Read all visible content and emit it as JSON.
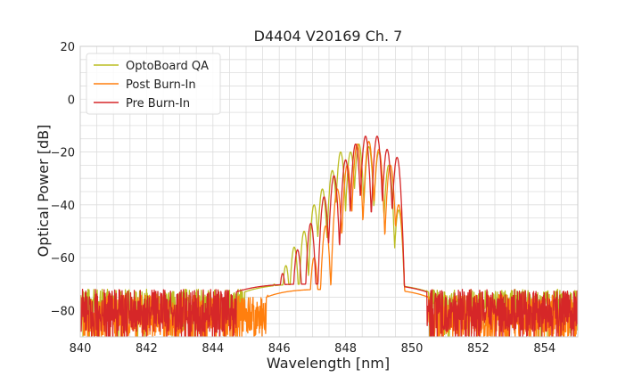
{
  "chart_data": {
    "type": "line",
    "title": "D4404 V20169 Ch. 7",
    "xlabel": "Wavelength [nm]",
    "ylabel": "Optical Power [dB]",
    "xlim": [
      840,
      855
    ],
    "ylim": [
      -90,
      20
    ],
    "x_ticks": [
      "840",
      "842",
      "844",
      "846",
      "848",
      "850",
      "852",
      "854"
    ],
    "y_ticks": [
      "20",
      "0",
      "−20",
      "−40",
      "−60",
      "−80"
    ],
    "x_minor_step": 0.5,
    "y_minor_step": 5,
    "grid": true,
    "legend_position": "top-left",
    "series": [
      {
        "name": "OptoBoard QA",
        "color": "#bcbd22",
        "noise_floor": [
          -84,
          -72
        ],
        "peaks": [
          {
            "x": 845.85,
            "y": -70
          },
          {
            "x": 846.2,
            "y": -63
          },
          {
            "x": 846.45,
            "y": -56
          },
          {
            "x": 846.75,
            "y": -50
          },
          {
            "x": 847.05,
            "y": -40
          },
          {
            "x": 847.3,
            "y": -34
          },
          {
            "x": 847.6,
            "y": -27
          },
          {
            "x": 847.85,
            "y": -20
          },
          {
            "x": 848.15,
            "y": -20
          },
          {
            "x": 848.4,
            "y": -17
          },
          {
            "x": 848.7,
            "y": -18
          },
          {
            "x": 849.0,
            "y": -20
          },
          {
            "x": 849.3,
            "y": -25
          },
          {
            "x": 849.6,
            "y": -42
          }
        ]
      },
      {
        "name": "Post Burn-In",
        "color": "#ff7f0e",
        "noise_floor": [
          -90,
          -74
        ],
        "peaks": [
          {
            "x": 846.5,
            "y": -78
          },
          {
            "x": 847.05,
            "y": -60
          },
          {
            "x": 847.4,
            "y": -48
          },
          {
            "x": 847.75,
            "y": -34
          },
          {
            "x": 848.05,
            "y": -25
          },
          {
            "x": 848.35,
            "y": -17
          },
          {
            "x": 848.7,
            "y": -16
          },
          {
            "x": 849.0,
            "y": -19
          },
          {
            "x": 849.35,
            "y": -25
          },
          {
            "x": 849.6,
            "y": -40
          }
        ]
      },
      {
        "name": "Pre Burn-In",
        "color": "#d62728",
        "noise_floor": [
          -88,
          -72
        ],
        "peaks": [
          {
            "x": 845.6,
            "y": -72
          },
          {
            "x": 846.1,
            "y": -66
          },
          {
            "x": 846.55,
            "y": -57
          },
          {
            "x": 846.95,
            "y": -47
          },
          {
            "x": 847.35,
            "y": -37
          },
          {
            "x": 847.65,
            "y": -29
          },
          {
            "x": 848.0,
            "y": -23
          },
          {
            "x": 848.3,
            "y": -17
          },
          {
            "x": 848.6,
            "y": -14
          },
          {
            "x": 848.95,
            "y": -14
          },
          {
            "x": 849.25,
            "y": -19
          },
          {
            "x": 849.55,
            "y": -22
          }
        ]
      }
    ]
  }
}
